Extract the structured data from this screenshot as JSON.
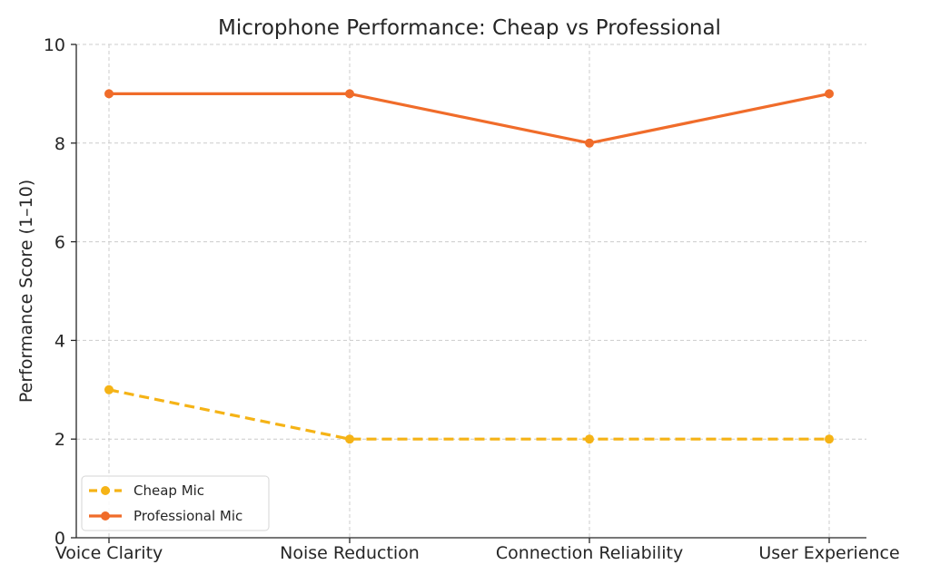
{
  "chart_data": {
    "type": "line",
    "title": "Microphone Performance: Cheap vs Professional",
    "xlabel": "",
    "ylabel": "Performance Score (1–10)",
    "categories": [
      "Voice Clarity",
      "Noise Reduction",
      "Connection Reliability",
      "User Experience"
    ],
    "ylim": [
      0,
      10
    ],
    "yticks": [
      0,
      2,
      4,
      6,
      8,
      10
    ],
    "grid": true,
    "legend_position": "bottom-left",
    "series": [
      {
        "name": "Cheap Mic",
        "values": [
          3,
          2,
          2,
          2
        ],
        "color": "#f5b316",
        "line_style": "dashed",
        "marker": "circle"
      },
      {
        "name": "Professional Mic",
        "values": [
          9,
          9,
          8,
          9
        ],
        "color": "#f06c2a",
        "line_style": "solid",
        "marker": "circle"
      }
    ]
  }
}
